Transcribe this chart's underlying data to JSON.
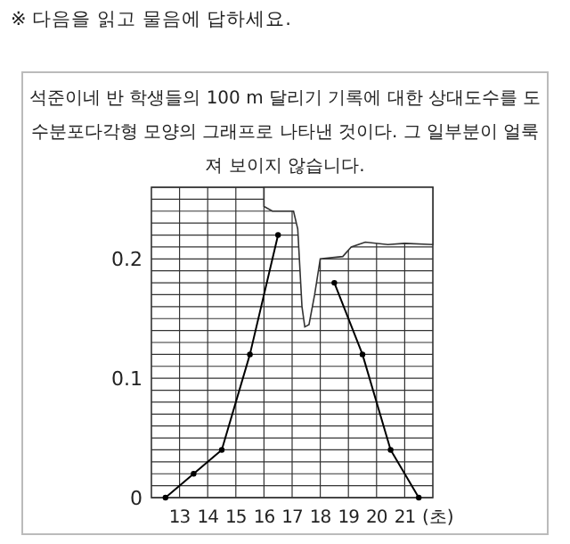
{
  "chart_data": {
    "type": "line",
    "title": "석준이네 반 학생들의 100 m 달리기 기록에 대한 상대도수를 도수분포다각형 모양의 그래프로 나타낸 것이다. 그 일부분이 얼룩져 보이지 않습니다.",
    "annotations": [
      "※ 다음을 읽고 물음에 답하세요."
    ],
    "xlabel": "(초)",
    "x": [
      12.5,
      13.5,
      14.5,
      15.5,
      16.5,
      17.5,
      18.5,
      19.5,
      20.5,
      21.5
    ],
    "series": [
      {
        "color": "#000000",
        "values": [
          0,
          0.02,
          0.04,
          0.12,
          0.22,
          null,
          0.18,
          0.12,
          0.04,
          0
        ]
      }
    ],
    "xlim": [
      12,
      22
    ],
    "xticks": [
      13,
      14,
      15,
      16,
      17,
      18,
      19,
      20,
      21
    ],
    "ylim": [
      0,
      0.26
    ],
    "yticks": [
      0,
      {
        "value": 0.01,
        "label": null
      },
      {
        "value": 0.02,
        "label": null
      },
      {
        "value": 0.03,
        "label": null
      },
      {
        "value": 0.04,
        "label": null
      },
      {
        "value": 0.05,
        "label": null
      },
      {
        "value": 0.06,
        "label": null
      },
      {
        "value": 0.07,
        "label": null
      },
      {
        "value": 0.08,
        "label": null
      },
      {
        "value": 0.09,
        "label": null
      },
      0.1,
      {
        "value": 0.11,
        "label": null
      },
      {
        "value": 0.12,
        "label": null
      },
      {
        "value": 0.13,
        "label": null
      },
      {
        "value": 0.14,
        "label": null
      },
      {
        "value": 0.15,
        "label": null
      },
      {
        "value": 0.16,
        "label": null
      },
      {
        "value": 0.17,
        "label": null
      },
      {
        "value": 0.18,
        "label": null
      },
      {
        "value": 0.19,
        "label": null
      },
      0.2,
      {
        "value": 0.21,
        "label": null
      },
      {
        "value": 0.22,
        "label": null
      },
      {
        "value": 0.23,
        "label": null
      },
      {
        "value": 0.24,
        "label": null
      },
      {
        "value": 0.25,
        "label": null
      },
      {
        "value": 0.26,
        "label": null
      }
    ],
    "grid": true,
    "marker": "circle",
    "line_style": "solid"
  }
}
